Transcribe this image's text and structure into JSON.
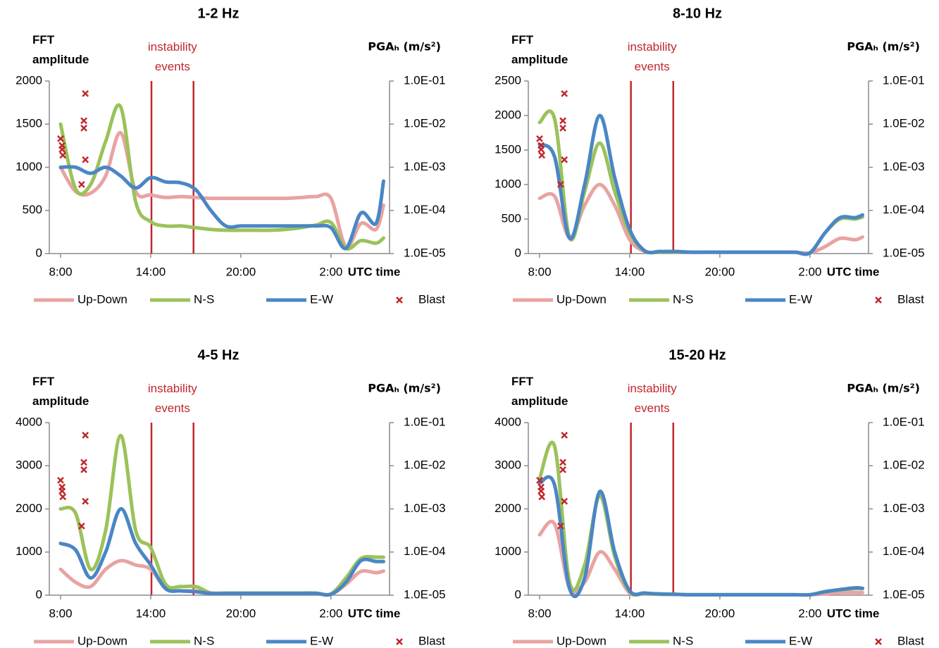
{
  "chart_data": [
    {
      "type": "line",
      "title": "1-2 Hz",
      "y_label": "FFT amplitude",
      "y2_label": "PGAₕ (m/s²)",
      "x_label": "UTC time",
      "annotation": {
        "text": "instability events",
        "x": [
          6.05,
          8.85
        ],
        "color": "#c0272d"
      },
      "x": [
        0,
        1,
        2,
        3,
        4,
        5,
        6,
        7,
        8,
        9,
        10,
        11,
        12,
        13,
        14,
        15,
        16,
        17,
        18,
        19,
        20,
        21,
        21.5
      ],
      "xlim": [
        -0.75,
        21.9
      ],
      "xticks": [
        {
          "value": 0,
          "label": "8:00"
        },
        {
          "value": 6,
          "label": "14:00"
        },
        {
          "value": 12,
          "label": "20:00"
        },
        {
          "value": 18,
          "label": "2:00"
        }
      ],
      "ylim": [
        0,
        2000
      ],
      "yticks": [
        0,
        500,
        1000,
        1500,
        2000
      ],
      "y2lim": [
        1e-05,
        0.1
      ],
      "y2scale": "log",
      "y2ticks": [
        {
          "value": 1e-05,
          "label": "1.0E-05"
        },
        {
          "value": 0.0001,
          "label": "1.0E-04"
        },
        {
          "value": 0.001,
          "label": "1.0E-03"
        },
        {
          "value": 0.01,
          "label": "1.0E-02"
        },
        {
          "value": 0.1,
          "label": "1.0E-01"
        }
      ],
      "series": [
        {
          "name": "Up-Down",
          "color": "#e8a3a2",
          "values": [
            1000,
            720,
            700,
            900,
            1400,
            720,
            680,
            650,
            660,
            650,
            640,
            640,
            640,
            640,
            640,
            640,
            650,
            660,
            640,
            80,
            350,
            280,
            560
          ]
        },
        {
          "name": "N-S",
          "color": "#9bc25a",
          "values": [
            1500,
            750,
            800,
            1300,
            1700,
            600,
            370,
            320,
            320,
            300,
            280,
            270,
            270,
            270,
            270,
            280,
            300,
            330,
            360,
            60,
            150,
            120,
            180
          ]
        },
        {
          "name": "E-W",
          "color": "#4a86c5",
          "values": [
            1000,
            1000,
            930,
            1000,
            900,
            760,
            880,
            830,
            820,
            740,
            500,
            320,
            320,
            320,
            320,
            320,
            320,
            320,
            300,
            60,
            470,
            350,
            840
          ]
        },
        {
          "name": "Blast",
          "type": "scatter",
          "axis": "y2",
          "color": "#c0272d",
          "x": [
            0,
            0.1,
            0.1,
            0.15,
            1.4,
            1.55,
            1.55,
            1.65,
            1.65
          ],
          "values": [
            0.0046,
            0.0032,
            0.0026,
            0.0019,
            0.0004,
            0.012,
            0.0081,
            0.0015,
            0.051
          ]
        }
      ]
    },
    {
      "type": "line",
      "title": "8-10 Hz",
      "y_label": "FFT amplitude",
      "y2_label": "PGAₕ (m/s²)",
      "x_label": "UTC time",
      "annotation": {
        "text": "instability events",
        "x": [
          6.08,
          8.9
        ],
        "color": "#c0272d"
      },
      "x": [
        0,
        1,
        2,
        3,
        4,
        5,
        6,
        7,
        8,
        9,
        10,
        11,
        12,
        13,
        14,
        15,
        16,
        17,
        18,
        19,
        20,
        21,
        21.5
      ],
      "xlim": [
        -0.75,
        21.9
      ],
      "xticks": [
        {
          "value": 0,
          "label": "8:00"
        },
        {
          "value": 6,
          "label": "14:00"
        },
        {
          "value": 12,
          "label": "20:00"
        },
        {
          "value": 18,
          "label": "2:00"
        }
      ],
      "ylim": [
        0,
        2500
      ],
      "yticks": [
        0,
        500,
        1000,
        1500,
        2000,
        2500
      ],
      "y2lim": [
        1e-05,
        0.1
      ],
      "y2scale": "log",
      "y2ticks": [
        {
          "value": 1e-05,
          "label": "1.0E-05"
        },
        {
          "value": 0.0001,
          "label": "1.0E-04"
        },
        {
          "value": 0.001,
          "label": "1.0E-03"
        },
        {
          "value": 0.01,
          "label": "1.0E-02"
        },
        {
          "value": 0.1,
          "label": "1.0E-01"
        }
      ],
      "series": [
        {
          "name": "Up-Down",
          "color": "#e8a3a2",
          "values": [
            800,
            830,
            230,
            700,
            1000,
            700,
            200,
            30,
            20,
            20,
            20,
            20,
            20,
            20,
            20,
            20,
            20,
            20,
            10,
            100,
            220,
            200,
            240
          ]
        },
        {
          "name": "N-S",
          "color": "#9bc25a",
          "values": [
            1900,
            1950,
            230,
            900,
            1600,
            900,
            300,
            40,
            20,
            20,
            20,
            20,
            20,
            20,
            20,
            20,
            20,
            20,
            10,
            300,
            500,
            500,
            530
          ]
        },
        {
          "name": "E-W",
          "color": "#4a86c5",
          "values": [
            1580,
            1400,
            220,
            1000,
            2000,
            1100,
            350,
            40,
            30,
            30,
            20,
            20,
            20,
            20,
            20,
            20,
            20,
            20,
            10,
            300,
            520,
            520,
            560
          ]
        },
        {
          "name": "Blast",
          "type": "scatter",
          "axis": "y2",
          "color": "#c0272d",
          "x": [
            0,
            0.1,
            0.1,
            0.15,
            1.4,
            1.55,
            1.55,
            1.65,
            1.65
          ],
          "values": [
            0.0046,
            0.0032,
            0.0026,
            0.0019,
            0.0004,
            0.012,
            0.0081,
            0.0015,
            0.051
          ]
        }
      ]
    },
    {
      "type": "line",
      "title": "4-5 Hz",
      "y_label": "FFT amplitude",
      "y2_label": "PGAₕ (m/s²)",
      "x_label": "UTC time",
      "annotation": {
        "text": "instability events",
        "x": [
          6.05,
          8.85
        ],
        "color": "#c0272d"
      },
      "x": [
        0,
        1,
        2,
        3,
        4,
        5,
        6,
        7,
        8,
        9,
        10,
        11,
        12,
        13,
        14,
        15,
        16,
        17,
        18,
        19,
        20,
        21,
        21.5
      ],
      "xlim": [
        -0.75,
        21.9
      ],
      "xticks": [
        {
          "value": 0,
          "label": "8:00"
        },
        {
          "value": 6,
          "label": "14:00"
        },
        {
          "value": 12,
          "label": "20:00"
        },
        {
          "value": 18,
          "label": "2:00"
        }
      ],
      "ylim": [
        0,
        4000
      ],
      "yticks": [
        0,
        1000,
        2000,
        3000,
        4000
      ],
      "y2lim": [
        1e-05,
        0.1
      ],
      "y2scale": "log",
      "y2ticks": [
        {
          "value": 1e-05,
          "label": "1.0E-05"
        },
        {
          "value": 0.0001,
          "label": "1.0E-04"
        },
        {
          "value": 0.001,
          "label": "1.0E-03"
        },
        {
          "value": 0.01,
          "label": "1.0E-02"
        },
        {
          "value": 0.1,
          "label": "1.0E-01"
        }
      ],
      "series": [
        {
          "name": "Up-Down",
          "color": "#e8a3a2",
          "values": [
            600,
            300,
            200,
            600,
            800,
            700,
            600,
            150,
            100,
            100,
            50,
            50,
            50,
            50,
            50,
            50,
            50,
            50,
            20,
            250,
            550,
            520,
            560
          ]
        },
        {
          "name": "N-S",
          "color": "#9bc25a",
          "values": [
            2000,
            1900,
            600,
            1500,
            3700,
            1500,
            1100,
            250,
            200,
            200,
            50,
            50,
            50,
            50,
            50,
            50,
            50,
            50,
            30,
            400,
            850,
            880,
            880
          ]
        },
        {
          "name": "E-W",
          "color": "#4a86c5",
          "values": [
            1200,
            1050,
            400,
            1000,
            2000,
            1200,
            700,
            150,
            100,
            80,
            40,
            40,
            40,
            40,
            40,
            40,
            40,
            40,
            20,
            300,
            800,
            780,
            780
          ]
        },
        {
          "name": "Blast",
          "type": "scatter",
          "axis": "y2",
          "color": "#c0272d",
          "x": [
            0,
            0.1,
            0.1,
            0.15,
            1.4,
            1.55,
            1.55,
            1.65,
            1.65
          ],
          "values": [
            0.0046,
            0.0032,
            0.0026,
            0.0019,
            0.0004,
            0.012,
            0.0081,
            0.0015,
            0.051
          ]
        }
      ]
    },
    {
      "type": "line",
      "title": "15-20 Hz",
      "y_label": "FFT amplitude",
      "y2_label": "PGAₕ (m/s²)",
      "x_label": "UTC time",
      "annotation": {
        "text": "instability events",
        "x": [
          6.08,
          8.9
        ],
        "color": "#c0272d"
      },
      "x": [
        0,
        1,
        2,
        3,
        4,
        5,
        6,
        7,
        8,
        9,
        10,
        11,
        12,
        13,
        14,
        15,
        16,
        17,
        18,
        19,
        20,
        21,
        21.5
      ],
      "xlim": [
        -0.75,
        21.9
      ],
      "xticks": [
        {
          "value": 0,
          "label": "8:00"
        },
        {
          "value": 6,
          "label": "14:00"
        },
        {
          "value": 12,
          "label": "20:00"
        },
        {
          "value": 18,
          "label": "2:00"
        }
      ],
      "ylim": [
        0,
        4000
      ],
      "yticks": [
        0,
        1000,
        2000,
        3000,
        4000
      ],
      "y2lim": [
        1e-05,
        0.1
      ],
      "y2scale": "log",
      "y2ticks": [
        {
          "value": 1e-05,
          "label": "1.0E-05"
        },
        {
          "value": 0.0001,
          "label": "1.0E-04"
        },
        {
          "value": 0.001,
          "label": "1.0E-03"
        },
        {
          "value": 0.01,
          "label": "1.0E-02"
        },
        {
          "value": 0.1,
          "label": "1.0E-01"
        }
      ],
      "series": [
        {
          "name": "Up-Down",
          "color": "#e8a3a2",
          "values": [
            1400,
            1650,
            150,
            300,
            1000,
            600,
            50,
            30,
            20,
            20,
            10,
            10,
            10,
            10,
            10,
            10,
            10,
            10,
            10,
            30,
            60,
            60,
            60
          ]
        },
        {
          "name": "N-S",
          "color": "#9bc25a",
          "values": [
            2700,
            3450,
            300,
            700,
            2300,
            900,
            80,
            40,
            20,
            20,
            10,
            10,
            10,
            10,
            10,
            10,
            10,
            10,
            10,
            80,
            120,
            150,
            150
          ]
        },
        {
          "name": "E-W",
          "color": "#4a86c5",
          "values": [
            2600,
            2550,
            150,
            400,
            2400,
            1000,
            100,
            50,
            30,
            20,
            10,
            10,
            10,
            10,
            10,
            10,
            10,
            10,
            10,
            80,
            130,
            170,
            160
          ]
        },
        {
          "name": "Blast",
          "type": "scatter",
          "axis": "y2",
          "color": "#c0272d",
          "x": [
            0,
            0.1,
            0.1,
            0.15,
            1.4,
            1.55,
            1.55,
            1.65,
            1.65
          ],
          "values": [
            0.0046,
            0.0032,
            0.0026,
            0.0019,
            0.0004,
            0.012,
            0.0081,
            0.0015,
            0.051
          ]
        }
      ]
    }
  ]
}
